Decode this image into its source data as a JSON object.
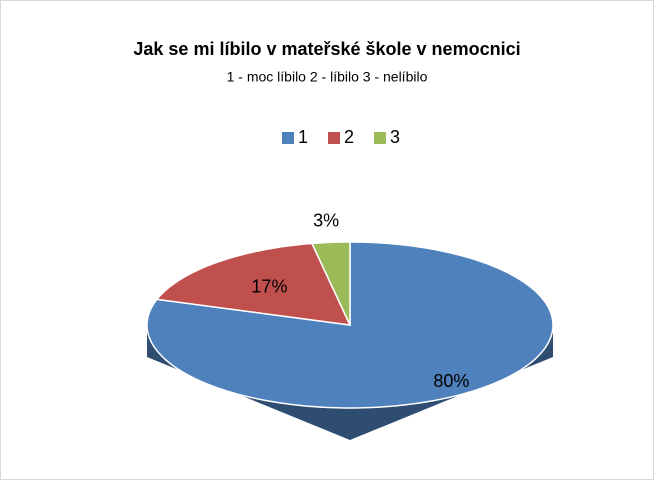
{
  "chart_data": {
    "type": "pie",
    "title": "Jak se mi líbilo v mateřské škole v nemocnici",
    "subtitle": "1 - moc líbilo  2 - líbilo  3 - nelíbilo",
    "categories": [
      "1",
      "2",
      "3"
    ],
    "values": [
      80,
      17,
      3
    ],
    "value_labels": [
      "80%",
      "17%",
      "3%"
    ],
    "colors": [
      "#4f81bd",
      "#c0504d",
      "#9bbb59"
    ],
    "legend": "top"
  }
}
